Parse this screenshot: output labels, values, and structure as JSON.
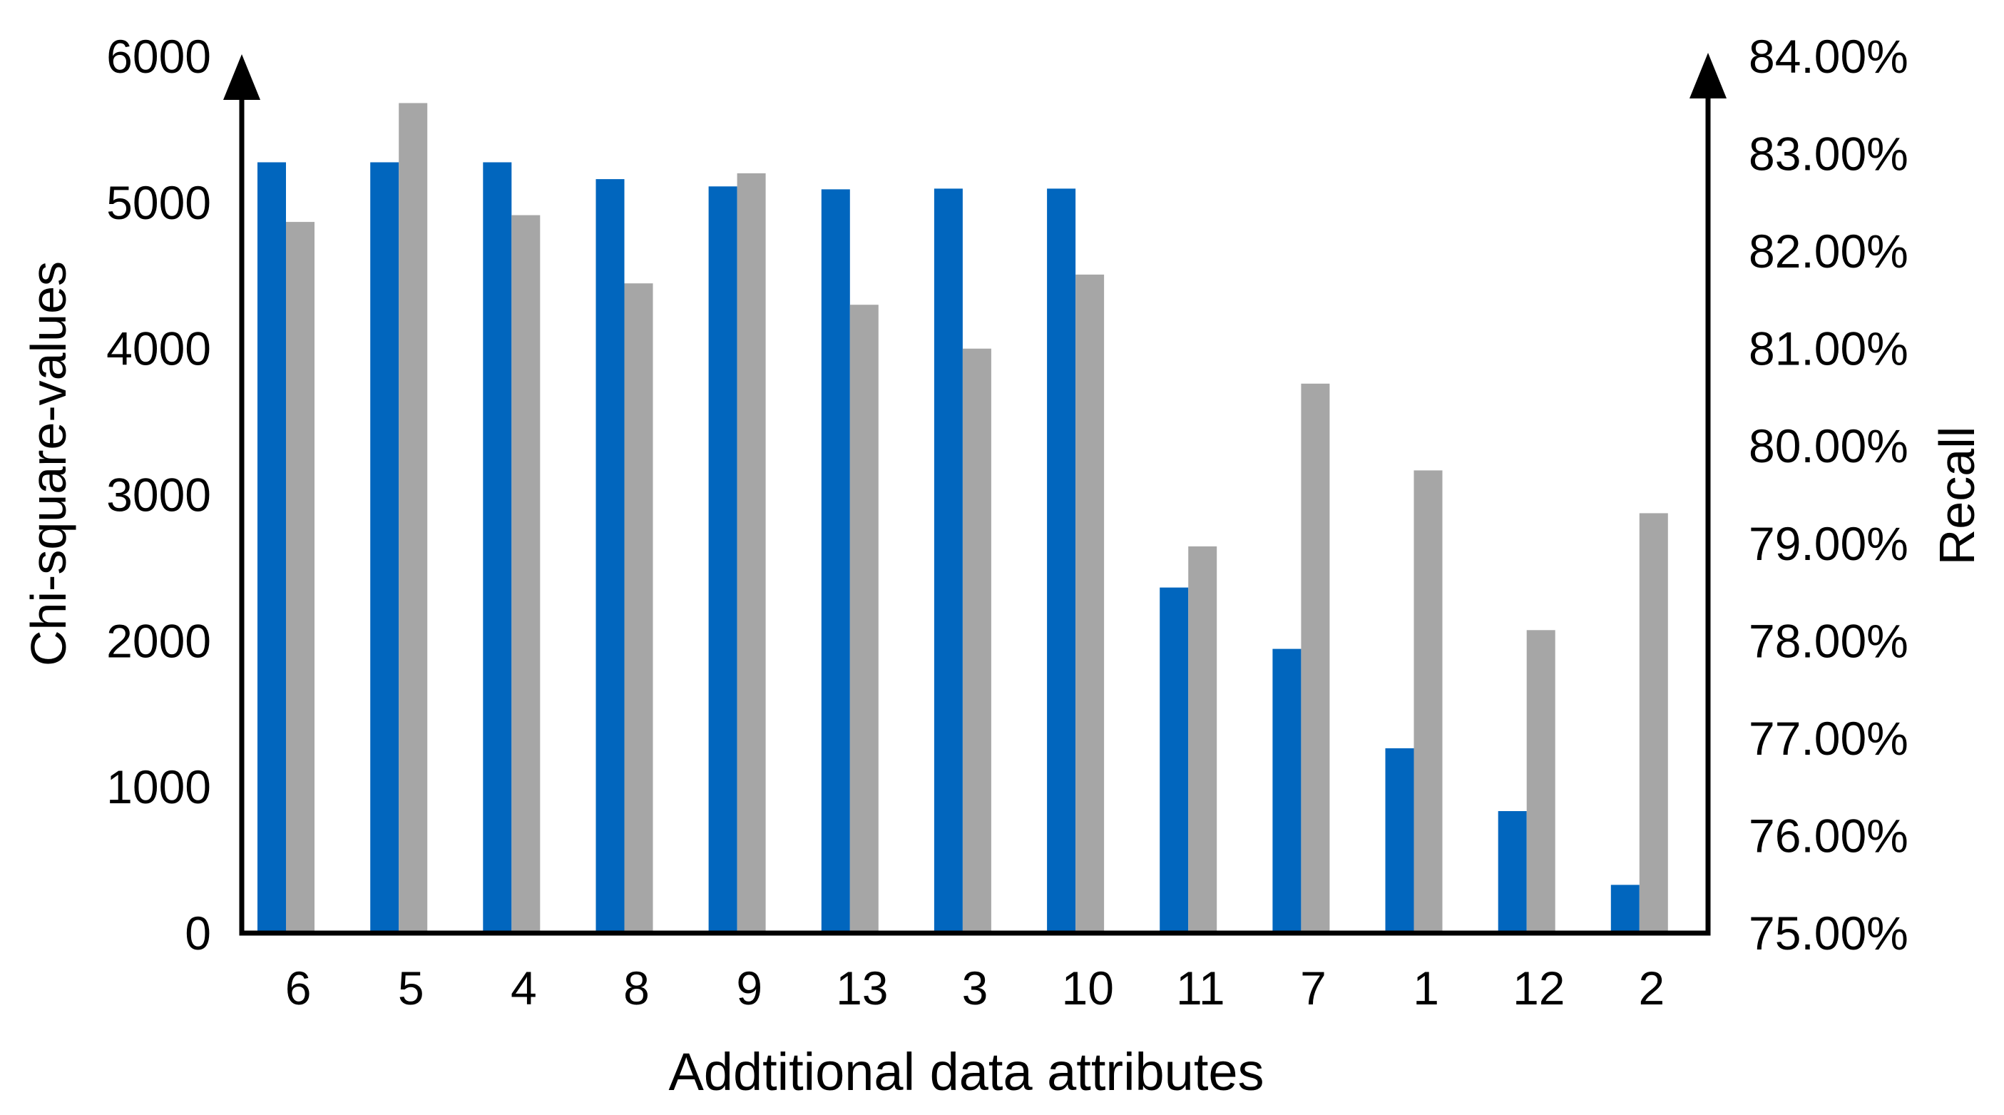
{
  "chart_data": {
    "type": "bar",
    "title": "",
    "categories": [
      "6",
      "5",
      "4",
      "8",
      "9",
      "13",
      "3",
      "10",
      "11",
      "7",
      "1",
      "12",
      "2"
    ],
    "series": [
      {
        "name": "Chi-square-values",
        "axis": "left",
        "color": "#0166BE",
        "values": [
          5275,
          5275,
          5275,
          5160,
          5110,
          5090,
          5095,
          5095,
          2365,
          1945,
          1265,
          835,
          330
        ]
      },
      {
        "name": "Recall",
        "axis": "right",
        "color": "#A6A6A6",
        "values": [
          82.3,
          83.52,
          82.37,
          81.67,
          82.8,
          81.45,
          81.0,
          81.76,
          78.97,
          80.64,
          79.75,
          78.11,
          79.31
        ]
      }
    ],
    "left_axis": {
      "label": "Chi-square-values",
      "min": 0,
      "max": 6000,
      "step": 1000,
      "tick_labels": [
        "0",
        "1000",
        "2000",
        "3000",
        "4000",
        "5000",
        "6000"
      ]
    },
    "right_axis": {
      "label": "Recall",
      "min": 75,
      "max": 84,
      "step": 1,
      "tick_labels": [
        "75.00%",
        "76.00%",
        "77.00%",
        "78.00%",
        "79.00%",
        "80.00%",
        "81.00%",
        "82.00%",
        "83.00%",
        "84.00%"
      ]
    },
    "x_axis": {
      "label": "Addtitional data attributes"
    },
    "legend": "none",
    "grid": false,
    "axis_color": "#000000",
    "background_color": "#FFFFFF"
  }
}
